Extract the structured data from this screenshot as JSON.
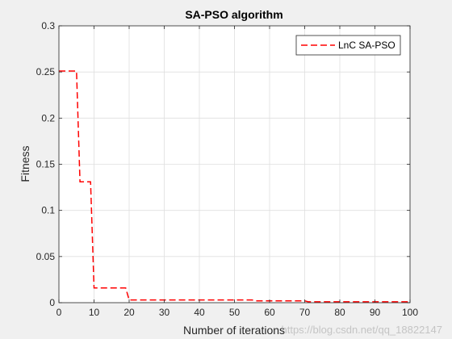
{
  "chart_data": {
    "type": "line",
    "title": "SA-PSO algorithm",
    "xlabel": "Number of iterations",
    "ylabel": "Fitness",
    "xlim": [
      0,
      100
    ],
    "ylim": [
      0,
      0.3
    ],
    "xticks": [
      0,
      10,
      20,
      30,
      40,
      50,
      60,
      70,
      80,
      90,
      100
    ],
    "yticks": [
      0,
      0.05,
      0.1,
      0.15,
      0.2,
      0.25,
      0.3
    ],
    "xtick_labels": [
      "0",
      "10",
      "20",
      "30",
      "40",
      "50",
      "60",
      "70",
      "80",
      "90",
      "100"
    ],
    "ytick_labels": [
      "0",
      "0.05",
      "0.1",
      "0.15",
      "0.2",
      "0.25",
      "0.3"
    ],
    "grid": true,
    "legend_position": "top-right",
    "series": [
      {
        "name": "LnC SA-PSO",
        "color": "#ff0000",
        "line_style": "dashed",
        "x": [
          0,
          5,
          6,
          9,
          10,
          19,
          20,
          55,
          56,
          70,
          71,
          100
        ],
        "y": [
          0.251,
          0.251,
          0.131,
          0.131,
          0.016,
          0.016,
          0.003,
          0.003,
          0.002,
          0.002,
          0.001,
          0.001
        ]
      }
    ]
  },
  "watermark": "https://blog.csdn.net/qq_18822147"
}
